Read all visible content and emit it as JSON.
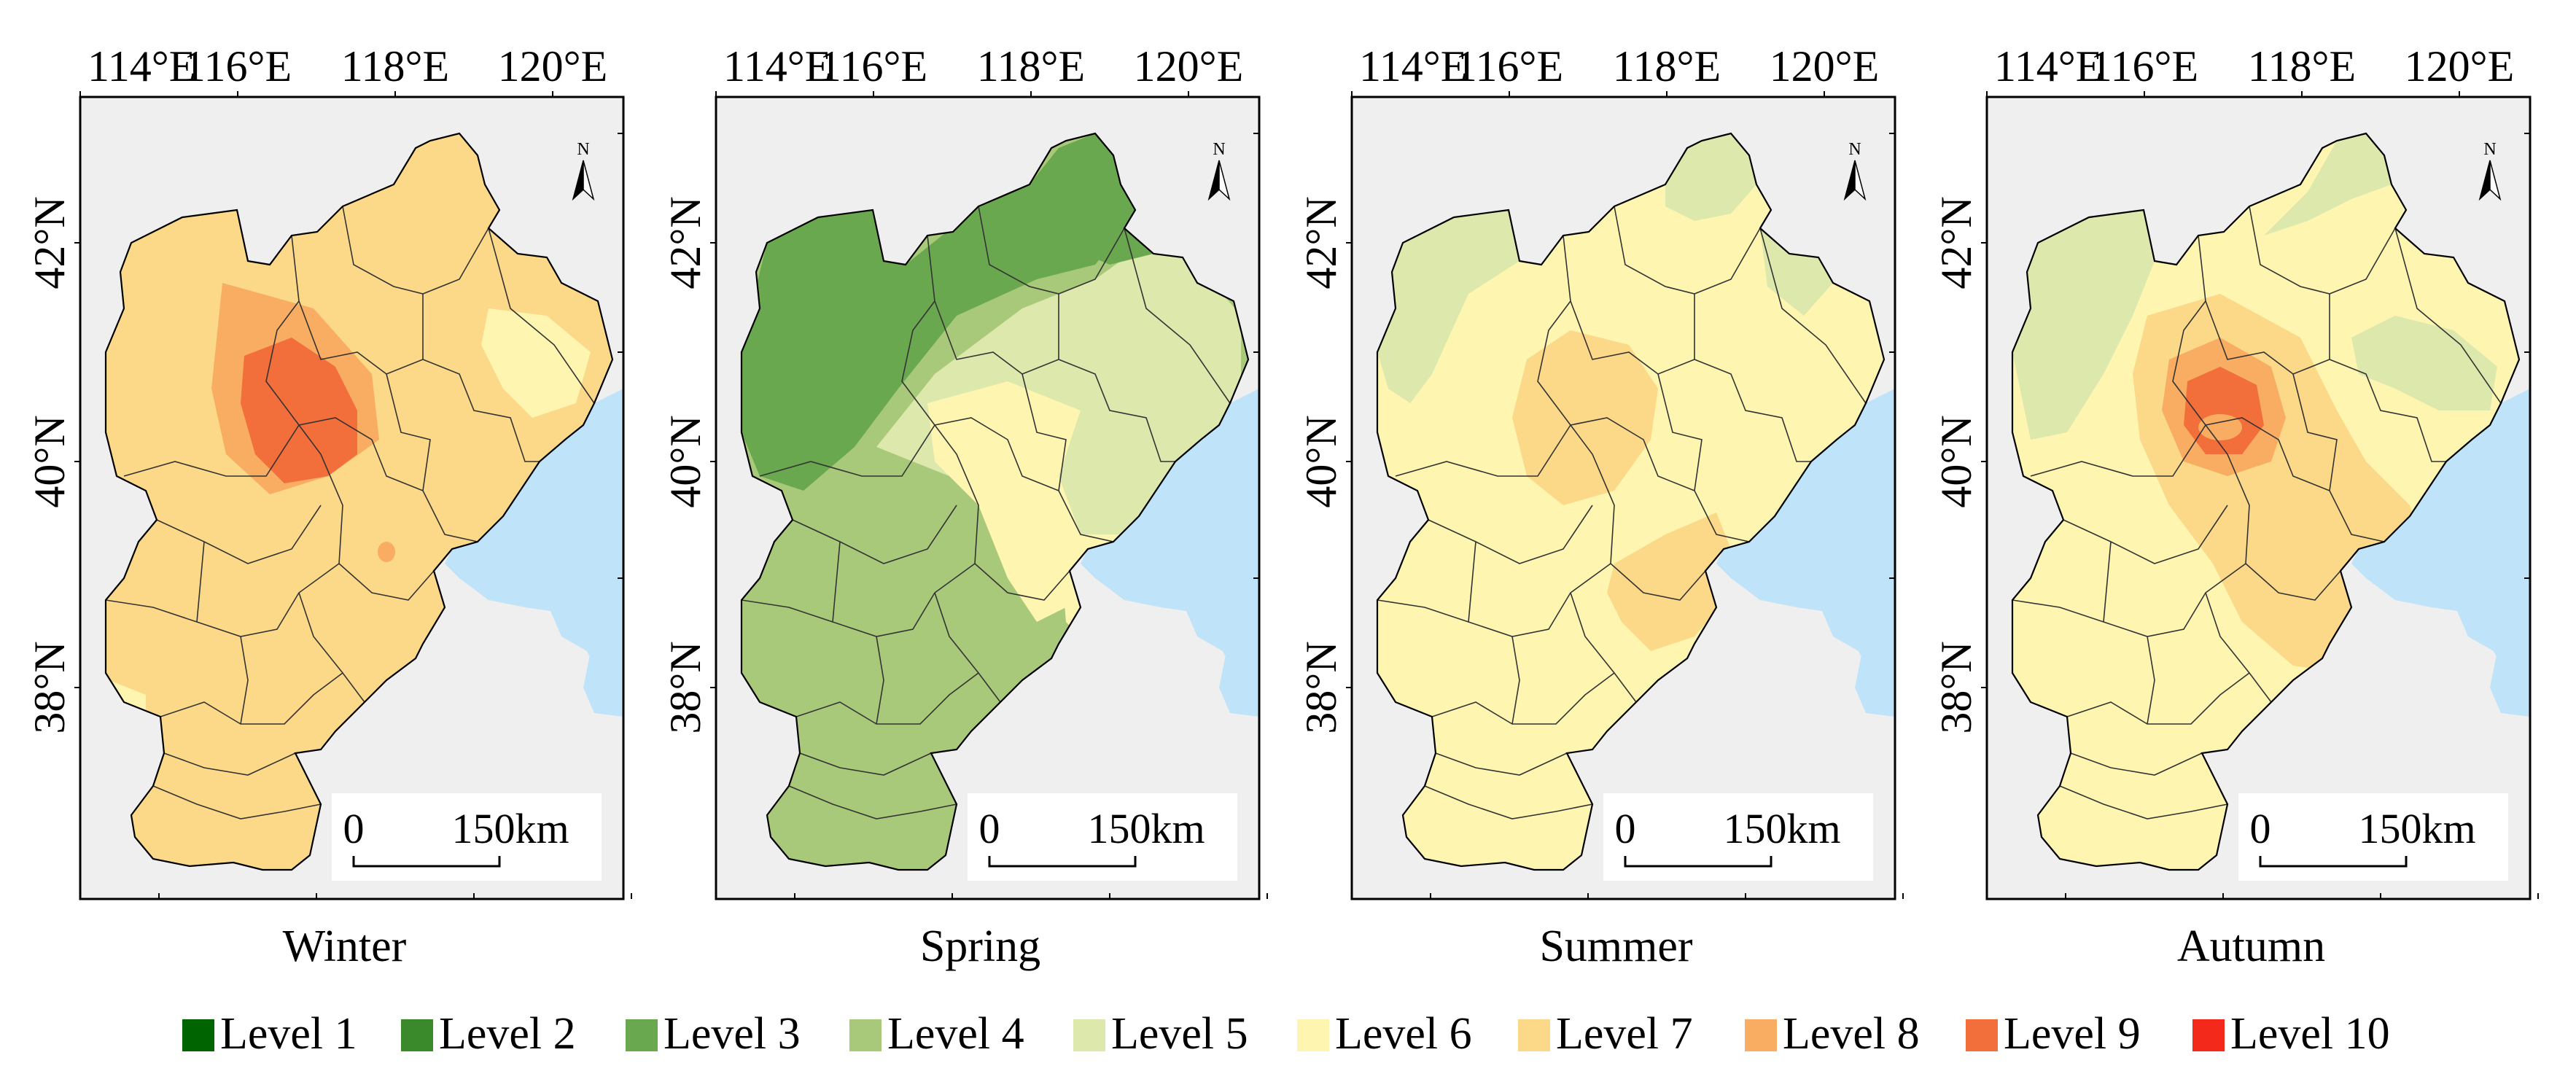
{
  "figure": {
    "lon_ticks": [
      "114°E",
      "116°E",
      "118°E",
      "120°E"
    ],
    "lat_ticks": [
      "42°N",
      "40°N",
      "38°N"
    ],
    "north_label": "N",
    "scalebar": {
      "start_label": "0",
      "end_label": "150km"
    },
    "panels": [
      {
        "id": "winter",
        "caption": "Winter",
        "levels": {
          "base": 7,
          "mid": 8,
          "core": 9,
          "low_patch": 6
        }
      },
      {
        "id": "spring",
        "caption": "Spring",
        "levels": {
          "base": 4,
          "nw": 3,
          "center": 6,
          "east": 5
        }
      },
      {
        "id": "summer",
        "caption": "Summer",
        "levels": {
          "base": 6,
          "north": 5,
          "hot": 7
        }
      },
      {
        "id": "autumn",
        "caption": "Autumn",
        "levels": {
          "base": 6,
          "north": 5,
          "mid": 7,
          "core": 8,
          "hot": 9
        }
      }
    ]
  },
  "legend": {
    "items": [
      {
        "label": "Level 1",
        "color": "#006400"
      },
      {
        "label": "Level 2",
        "color": "#3a8a2c"
      },
      {
        "label": "Level 3",
        "color": "#6aa84f"
      },
      {
        "label": "Level 4",
        "color": "#a8c97a"
      },
      {
        "label": "Level 5",
        "color": "#dde8ad"
      },
      {
        "label": "Level 6",
        "color": "#fdf5b0"
      },
      {
        "label": "Level 7",
        "color": "#fcd988"
      },
      {
        "label": "Level 8",
        "color": "#f9ad62"
      },
      {
        "label": "Level 9",
        "color": "#f26e3b"
      },
      {
        "label": "Level 10",
        "color": "#f3291b"
      }
    ]
  },
  "colors": {
    "sea": "#bfe3f8",
    "background": "#efefef",
    "frame": "#000000",
    "boundary": "#333333"
  }
}
